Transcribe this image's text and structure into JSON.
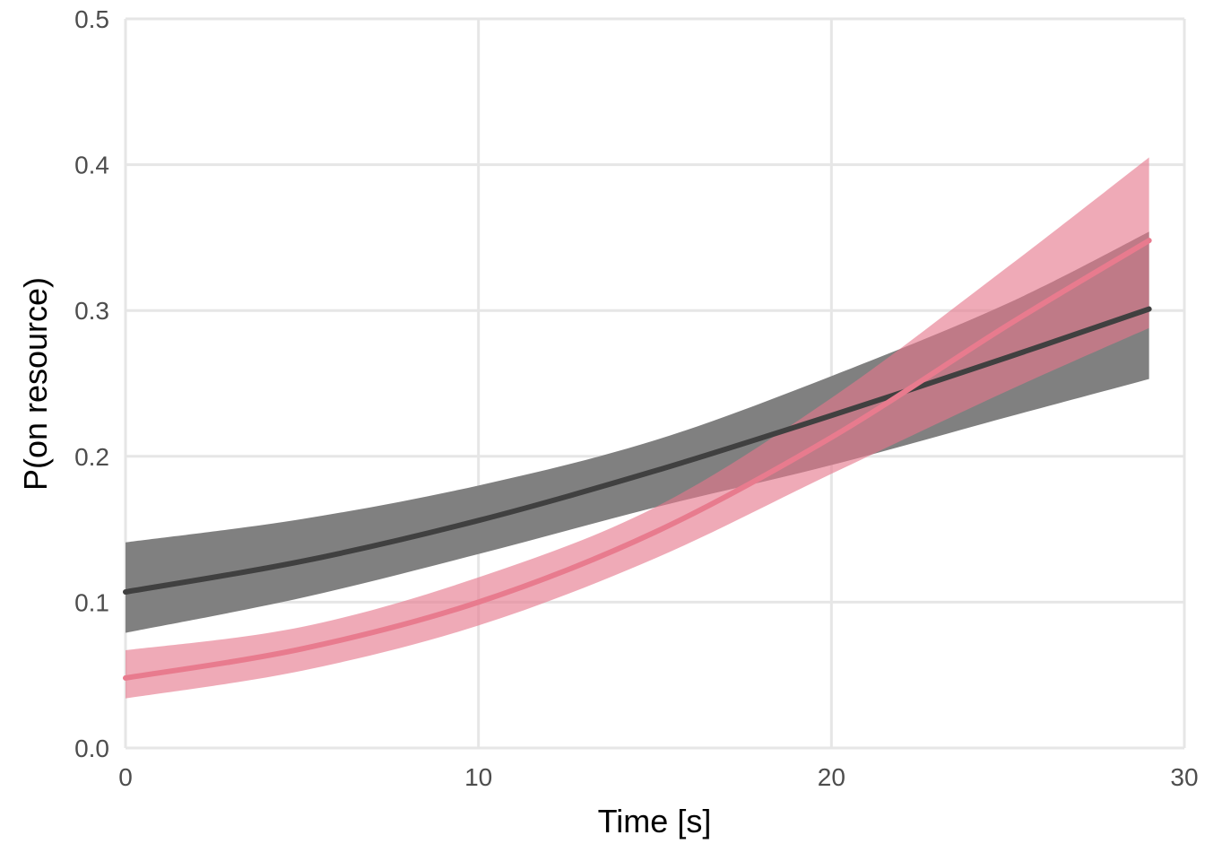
{
  "chart_data": {
    "type": "line",
    "xlabel": "Time [s]",
    "ylabel": "P(on resource)",
    "xlim": [
      0,
      30
    ],
    "ylim": [
      0,
      0.5
    ],
    "x_ticks": [
      "0",
      "10",
      "20",
      "30"
    ],
    "y_ticks": [
      "0.0",
      "0.1",
      "0.2",
      "0.3",
      "0.4",
      "0.5"
    ],
    "grid": true,
    "legend": "none",
    "series": [
      {
        "color": "#404040",
        "band_color": "#808080",
        "x": [
          0,
          5,
          10,
          15,
          20,
          25,
          29
        ],
        "y": [
          0.107,
          0.128,
          0.156,
          0.19,
          0.228,
          0.268,
          0.301
        ],
        "y_lower": [
          0.079,
          0.103,
          0.133,
          0.165,
          0.194,
          0.227,
          0.253
        ],
        "y_upper": [
          0.141,
          0.157,
          0.18,
          0.211,
          0.255,
          0.305,
          0.354
        ]
      },
      {
        "color": "#e87b8e",
        "band_color": "#eea3b0",
        "x": [
          0,
          5,
          10,
          15,
          20,
          25,
          29
        ],
        "y": [
          0.048,
          0.068,
          0.1,
          0.148,
          0.213,
          0.29,
          0.348
        ],
        "y_lower": [
          0.034,
          0.053,
          0.084,
          0.13,
          0.188,
          0.245,
          0.288
        ],
        "y_upper": [
          0.067,
          0.083,
          0.117,
          0.165,
          0.24,
          0.33,
          0.405
        ]
      }
    ]
  }
}
